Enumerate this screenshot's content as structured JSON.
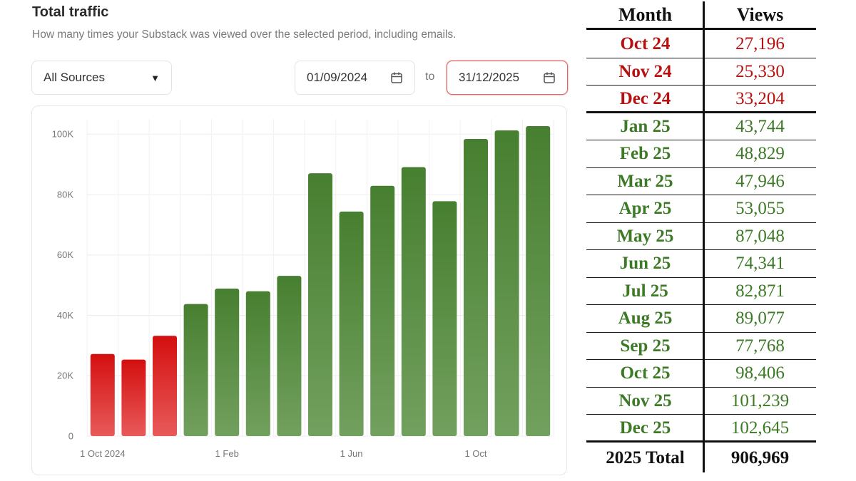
{
  "header": {
    "title": "Total traffic",
    "subtitle": "How many times your Substack was viewed over the selected period, including emails."
  },
  "filters": {
    "source_select": "All Sources",
    "start_date": "01/09/2024",
    "to_label": "to",
    "end_date": "31/12/2025"
  },
  "colors": {
    "red_top": "#d40f0f",
    "red_bottom": "#e85a5a",
    "green_top": "#477f30",
    "green_bottom": "#72a05e",
    "table_red": "#b80f0f",
    "table_green": "#3c7a26"
  },
  "chart_data": {
    "type": "bar",
    "categories": [
      "Oct 24",
      "Nov 24",
      "Dec 24",
      "Jan 25",
      "Feb 25",
      "Mar 25",
      "Apr 25",
      "May 25",
      "Jun 25",
      "Jul 25",
      "Aug 25",
      "Sep 25",
      "Oct 25",
      "Nov 25",
      "Dec 25"
    ],
    "values": [
      27196,
      25330,
      33204,
      43744,
      48829,
      47946,
      53055,
      87048,
      74341,
      82871,
      89077,
      77768,
      98406,
      101239,
      102645
    ],
    "bar_colors": [
      "red",
      "red",
      "red",
      "green",
      "green",
      "green",
      "green",
      "green",
      "green",
      "green",
      "green",
      "green",
      "green",
      "green",
      "green"
    ],
    "yticks": [
      "0",
      "20K",
      "40K",
      "60K",
      "80K",
      "100K"
    ],
    "ytick_values": [
      0,
      20000,
      40000,
      60000,
      80000,
      100000
    ],
    "xticks": [
      {
        "label": "1 Oct 2024",
        "category_index": 0
      },
      {
        "label": "1 Feb",
        "category_index": 4
      },
      {
        "label": "1 Jun",
        "category_index": 8
      },
      {
        "label": "1 Oct",
        "category_index": 12
      }
    ],
    "ylim": [
      0,
      105000
    ],
    "grid": true
  },
  "table": {
    "headers": [
      "Month",
      "Views"
    ],
    "rows": [
      {
        "month": "Oct 24",
        "views": "27,196",
        "color": "red"
      },
      {
        "month": "Nov 24",
        "views": "25,330",
        "color": "red"
      },
      {
        "month": "Dec 24",
        "views": "33,204",
        "color": "red"
      },
      {
        "month": "Jan 25",
        "views": "43,744",
        "color": "green"
      },
      {
        "month": "Feb 25",
        "views": "48,829",
        "color": "green"
      },
      {
        "month": "Mar 25",
        "views": "47,946",
        "color": "green"
      },
      {
        "month": "Apr 25",
        "views": "53,055",
        "color": "green"
      },
      {
        "month": "May 25",
        "views": "87,048",
        "color": "green"
      },
      {
        "month": "Jun 25",
        "views": "74,341",
        "color": "green"
      },
      {
        "month": "Jul 25",
        "views": "82,871",
        "color": "green"
      },
      {
        "month": "Aug 25",
        "views": "89,077",
        "color": "green"
      },
      {
        "month": "Sep 25",
        "views": "77,768",
        "color": "green"
      },
      {
        "month": "Oct 25",
        "views": "98,406",
        "color": "green"
      },
      {
        "month": "Nov 25",
        "views": "101,239",
        "color": "green"
      },
      {
        "month": "Dec 25",
        "views": "102,645",
        "color": "green"
      }
    ],
    "total_label": "2025 Total",
    "total_value": "906,969"
  }
}
